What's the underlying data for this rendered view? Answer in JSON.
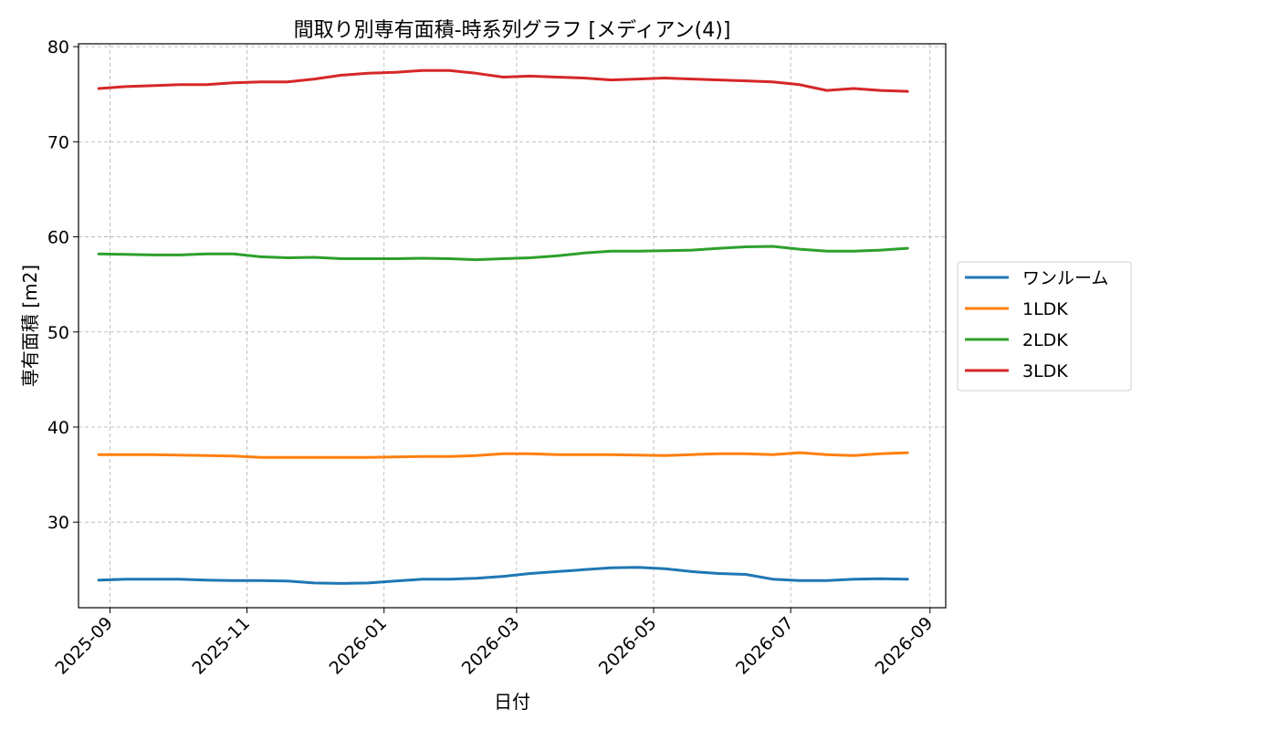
{
  "chart_data": {
    "type": "line",
    "title": "間取り別専有面積-時系列グラフ [メディアン(4)]",
    "xlabel": "日付",
    "ylabel": "専有面積 [m2]",
    "ylim": [
      21,
      80.3
    ],
    "xlim": [
      "2025-08-18",
      "2026-09-08"
    ],
    "yticks": [
      30,
      40,
      50,
      60,
      70,
      80
    ],
    "xticks": [
      "2025-09",
      "2025-11",
      "2026-01",
      "2026-03",
      "2026-05",
      "2026-07",
      "2026-09"
    ],
    "grid": true,
    "legend_position": "center-right",
    "series": [
      {
        "name": "ワンルーム",
        "color": "#1f77b4",
        "points": [
          [
            "2025-08-27",
            23.9
          ],
          [
            "2025-09-08",
            24.0
          ],
          [
            "2025-09-20",
            24.0
          ],
          [
            "2025-10-02",
            24.0
          ],
          [
            "2025-10-14",
            23.9
          ],
          [
            "2025-10-26",
            23.85
          ],
          [
            "2025-11-07",
            23.85
          ],
          [
            "2025-11-19",
            23.8
          ],
          [
            "2025-12-01",
            23.6
          ],
          [
            "2025-12-13",
            23.55
          ],
          [
            "2025-12-25",
            23.6
          ],
          [
            "2026-01-06",
            23.8
          ],
          [
            "2026-01-18",
            24.0
          ],
          [
            "2026-01-30",
            24.0
          ],
          [
            "2026-02-11",
            24.1
          ],
          [
            "2026-02-23",
            24.3
          ],
          [
            "2026-03-07",
            24.6
          ],
          [
            "2026-03-19",
            24.8
          ],
          [
            "2026-03-31",
            25.0
          ],
          [
            "2026-04-12",
            25.2
          ],
          [
            "2026-04-24",
            25.25
          ],
          [
            "2026-05-06",
            25.1
          ],
          [
            "2026-05-18",
            24.8
          ],
          [
            "2026-05-30",
            24.6
          ],
          [
            "2026-06-11",
            24.5
          ],
          [
            "2026-06-23",
            24.0
          ],
          [
            "2026-07-05",
            23.85
          ],
          [
            "2026-07-17",
            23.85
          ],
          [
            "2026-07-29",
            24.0
          ],
          [
            "2026-08-10",
            24.05
          ],
          [
            "2026-08-22",
            24.0
          ]
        ]
      },
      {
        "name": "1LDK",
        "color": "#ff7f0e",
        "points": [
          [
            "2025-08-27",
            37.1
          ],
          [
            "2025-09-08",
            37.1
          ],
          [
            "2025-09-20",
            37.1
          ],
          [
            "2025-10-02",
            37.05
          ],
          [
            "2025-10-14",
            37.0
          ],
          [
            "2025-10-26",
            36.95
          ],
          [
            "2025-11-07",
            36.8
          ],
          [
            "2025-11-19",
            36.8
          ],
          [
            "2025-12-01",
            36.8
          ],
          [
            "2025-12-13",
            36.8
          ],
          [
            "2025-12-25",
            36.8
          ],
          [
            "2026-01-06",
            36.85
          ],
          [
            "2026-01-18",
            36.9
          ],
          [
            "2026-01-30",
            36.9
          ],
          [
            "2026-02-11",
            37.0
          ],
          [
            "2026-02-23",
            37.2
          ],
          [
            "2026-03-07",
            37.2
          ],
          [
            "2026-03-19",
            37.1
          ],
          [
            "2026-03-31",
            37.1
          ],
          [
            "2026-04-12",
            37.1
          ],
          [
            "2026-04-24",
            37.05
          ],
          [
            "2026-05-06",
            37.0
          ],
          [
            "2026-05-18",
            37.1
          ],
          [
            "2026-05-30",
            37.2
          ],
          [
            "2026-06-11",
            37.2
          ],
          [
            "2026-06-23",
            37.1
          ],
          [
            "2026-07-05",
            37.3
          ],
          [
            "2026-07-17",
            37.1
          ],
          [
            "2026-07-29",
            37.0
          ],
          [
            "2026-08-10",
            37.2
          ],
          [
            "2026-08-22",
            37.3
          ]
        ]
      },
      {
        "name": "2LDK",
        "color": "#2ca02c",
        "points": [
          [
            "2025-08-27",
            58.2
          ],
          [
            "2025-09-08",
            58.15
          ],
          [
            "2025-09-20",
            58.1
          ],
          [
            "2025-10-02",
            58.1
          ],
          [
            "2025-10-14",
            58.2
          ],
          [
            "2025-10-26",
            58.2
          ],
          [
            "2025-11-07",
            57.9
          ],
          [
            "2025-11-19",
            57.8
          ],
          [
            "2025-12-01",
            57.85
          ],
          [
            "2025-12-13",
            57.7
          ],
          [
            "2025-12-25",
            57.7
          ],
          [
            "2026-01-06",
            57.7
          ],
          [
            "2026-01-18",
            57.75
          ],
          [
            "2026-01-30",
            57.7
          ],
          [
            "2026-02-11",
            57.6
          ],
          [
            "2026-02-23",
            57.7
          ],
          [
            "2026-03-07",
            57.8
          ],
          [
            "2026-03-19",
            58.0
          ],
          [
            "2026-03-31",
            58.3
          ],
          [
            "2026-04-12",
            58.5
          ],
          [
            "2026-04-24",
            58.5
          ],
          [
            "2026-05-06",
            58.55
          ],
          [
            "2026-05-18",
            58.6
          ],
          [
            "2026-05-30",
            58.8
          ],
          [
            "2026-06-11",
            58.95
          ],
          [
            "2026-06-23",
            59.0
          ],
          [
            "2026-07-05",
            58.7
          ],
          [
            "2026-07-17",
            58.5
          ],
          [
            "2026-07-29",
            58.5
          ],
          [
            "2026-08-10",
            58.6
          ],
          [
            "2026-08-22",
            58.8
          ]
        ]
      },
      {
        "name": "3LDK",
        "color": "#d62728",
        "points": [
          [
            "2025-08-27",
            75.6
          ],
          [
            "2025-09-08",
            75.8
          ],
          [
            "2025-09-20",
            75.9
          ],
          [
            "2025-10-02",
            76.0
          ],
          [
            "2025-10-14",
            76.0
          ],
          [
            "2025-10-26",
            76.2
          ],
          [
            "2025-11-07",
            76.3
          ],
          [
            "2025-11-19",
            76.3
          ],
          [
            "2025-12-01",
            76.6
          ],
          [
            "2025-12-13",
            77.0
          ],
          [
            "2025-12-25",
            77.2
          ],
          [
            "2026-01-06",
            77.3
          ],
          [
            "2026-01-18",
            77.5
          ],
          [
            "2026-01-30",
            77.5
          ],
          [
            "2026-02-11",
            77.2
          ],
          [
            "2026-02-23",
            76.8
          ],
          [
            "2026-03-07",
            76.9
          ],
          [
            "2026-03-19",
            76.8
          ],
          [
            "2026-03-31",
            76.7
          ],
          [
            "2026-04-12",
            76.5
          ],
          [
            "2026-04-24",
            76.6
          ],
          [
            "2026-05-06",
            76.7
          ],
          [
            "2026-05-18",
            76.6
          ],
          [
            "2026-05-30",
            76.5
          ],
          [
            "2026-06-11",
            76.4
          ],
          [
            "2026-06-23",
            76.3
          ],
          [
            "2026-07-05",
            76.0
          ],
          [
            "2026-07-17",
            75.4
          ],
          [
            "2026-07-29",
            75.6
          ],
          [
            "2026-08-10",
            75.4
          ],
          [
            "2026-08-22",
            75.3
          ]
        ]
      }
    ]
  }
}
